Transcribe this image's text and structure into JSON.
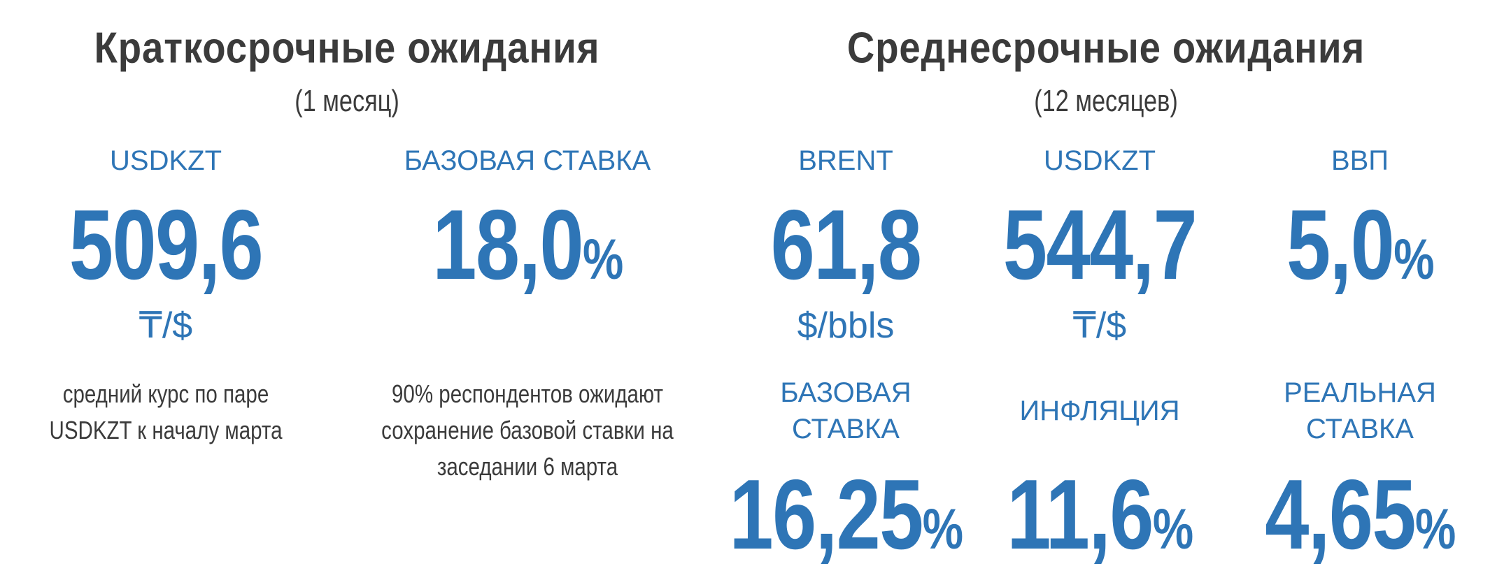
{
  "left": {
    "title": "Краткосрочные ожидания",
    "subtitle": "(1 месяц)",
    "items": [
      {
        "label": "USDKZT",
        "value": "509,6",
        "unit": "₸/$",
        "note": [
          "средний курс по паре",
          "USDKZT к началу марта"
        ]
      },
      {
        "label": "БАЗОВАЯ СТАВКА",
        "value": "18,0",
        "suffix": "%",
        "note": [
          "90% респондентов ожидают",
          "сохранение базовой ставки на",
          "заседании 6 марта"
        ]
      }
    ]
  },
  "right": {
    "title": "Среднесрочные ожидания",
    "subtitle": "(12 месяцев)",
    "items": [
      {
        "label": "BRENT",
        "value": "61,8",
        "unit": "$/bbls"
      },
      {
        "label": "USDKZT",
        "value": "544,7",
        "unit": "₸/$"
      },
      {
        "label": "ВВП",
        "value": "5,0",
        "suffix": "%"
      },
      {
        "label": "БАЗОВАЯ СТАВКА",
        "value": "16,25",
        "suffix": "%"
      },
      {
        "label": "ИНФЛЯЦИЯ",
        "value": "11,6",
        "suffix": "%"
      },
      {
        "label": "РЕАЛЬНАЯ СТАВКА",
        "value": "4,65",
        "suffix": "%"
      }
    ]
  }
}
